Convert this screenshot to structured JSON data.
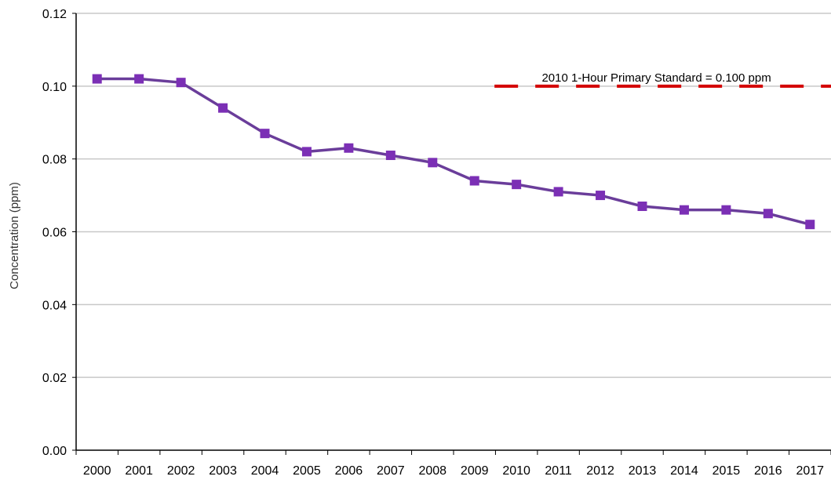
{
  "chart_data": {
    "type": "line",
    "title": "",
    "xlabel": "",
    "ylabel": "Concentration (ppm)",
    "categories": [
      "2000",
      "2001",
      "2002",
      "2003",
      "2004",
      "2005",
      "2006",
      "2007",
      "2008",
      "2009",
      "2010",
      "2011",
      "2012",
      "2013",
      "2014",
      "2015",
      "2016",
      "2017"
    ],
    "series": [
      {
        "values": [
          0.102,
          0.102,
          0.101,
          0.094,
          0.087,
          0.082,
          0.083,
          0.081,
          0.079,
          0.074,
          0.073,
          0.071,
          0.07,
          0.067,
          0.066,
          0.066,
          0.065,
          0.062
        ],
        "color": "#6A3D9A",
        "marker_color": "#7B2FB5",
        "marker": "square"
      }
    ],
    "ylim": [
      0,
      0.12
    ],
    "yticks": [
      "0.00",
      "0.02",
      "0.04",
      "0.06",
      "0.08",
      "0.10",
      "0.12"
    ],
    "grid": true,
    "legend": "none",
    "reference_line": {
      "value": 0.1,
      "label": "2010 1-Hour Primary Standard = 0.100 ppm",
      "color": "#D40000",
      "style": "dashed",
      "x_start_category": "2010"
    }
  }
}
